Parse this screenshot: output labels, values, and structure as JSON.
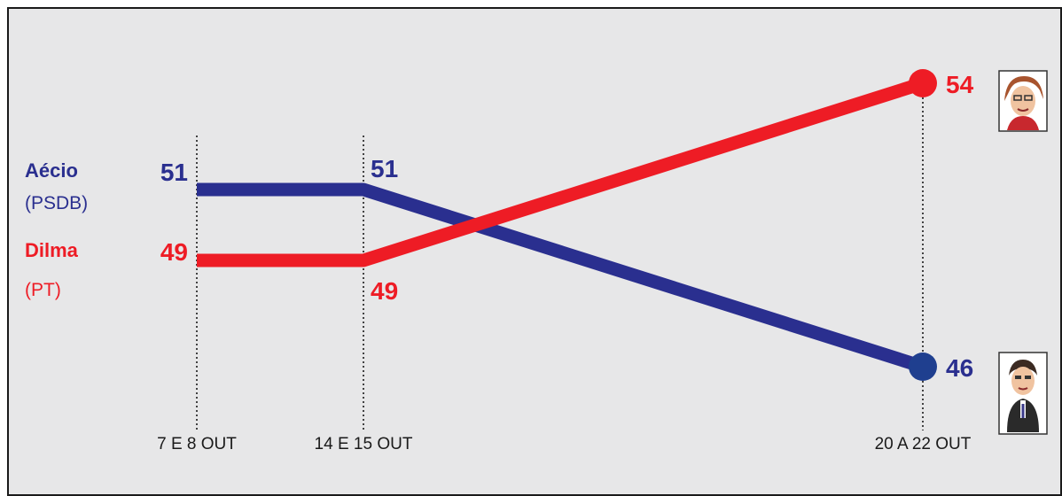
{
  "chart_data": {
    "type": "line",
    "x": [
      "7 E 8 OUT",
      "14 E 15 OUT",
      "20 A 22 OUT"
    ],
    "series": [
      {
        "name": "Aécio",
        "party": "(PSDB)",
        "color": "#2a2f8f",
        "marker_color": "#1f3f8f",
        "values": [
          51,
          51,
          46
        ]
      },
      {
        "name": "Dilma",
        "party": "(PT)",
        "color": "#ee1c25",
        "marker_color": "#ee1c25",
        "values": [
          49,
          49,
          54
        ]
      }
    ],
    "ylim": [
      44,
      56
    ],
    "grid": false,
    "legend": "left",
    "icons": [
      "dilma-portrait-icon",
      "aecio-portrait-icon"
    ]
  }
}
